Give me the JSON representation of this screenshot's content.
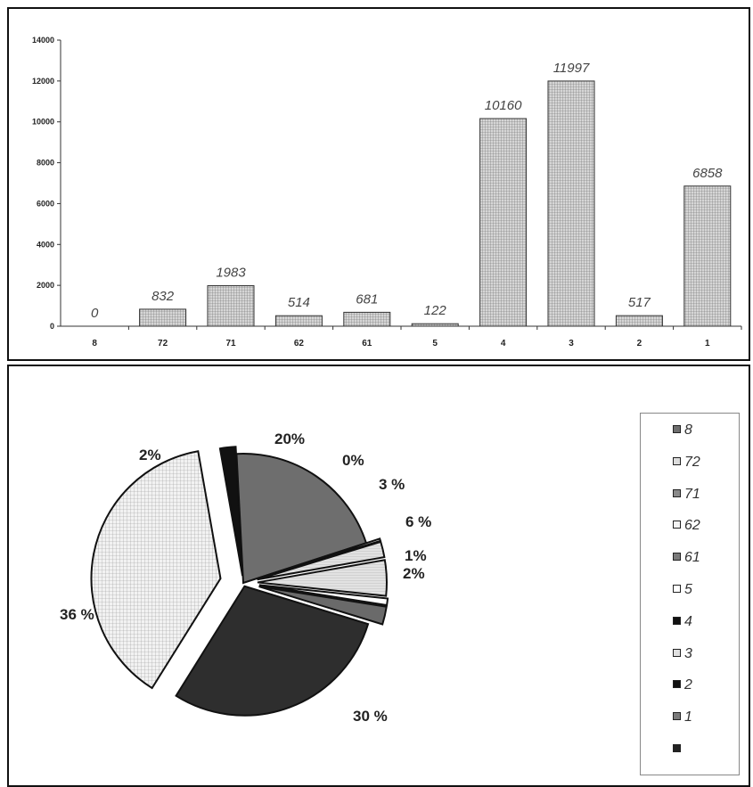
{
  "chart_data": [
    {
      "type": "bar",
      "categories": [
        "8",
        "72",
        "71",
        "62",
        "61",
        "5",
        "4",
        "3",
        "2",
        "1"
      ],
      "values": [
        0,
        832,
        1983,
        514,
        681,
        122,
        10160,
        11997,
        517,
        6858
      ],
      "data_labels": [
        "0",
        "832",
        "1983",
        "514",
        "681",
        "122",
        "10160",
        "11997",
        "517",
        "6858"
      ],
      "y_ticks": [
        "0",
        "2000",
        "4000",
        "6000",
        "8000",
        "10000",
        "12000",
        "14000"
      ],
      "ylim": [
        0,
        14000
      ],
      "bar_color": "#c8c8c8",
      "grid": false,
      "title": "",
      "xlabel": "",
      "ylabel": ""
    },
    {
      "type": "pie",
      "slices": [
        {
          "label": "2%",
          "value": 2,
          "color": "#111111"
        },
        {
          "label": "20%",
          "value": 20,
          "color": "#7a7a7a"
        },
        {
          "label": "0%",
          "value": 0.4,
          "color": "#ffffff"
        },
        {
          "label": "3 %",
          "value": 3,
          "color": "#d0d0d0"
        },
        {
          "label": "6 %",
          "value": 6,
          "color": "#c8c8c8"
        },
        {
          "label": "1%",
          "value": 1,
          "color": "#ffffff"
        },
        {
          "label": "2%",
          "value": 2,
          "color": "#6a6a6a"
        },
        {
          "label": "30 %",
          "value": 30,
          "color": "#2b2b2b"
        },
        {
          "label": "36 %",
          "value": 36,
          "color": "#e8e8e8"
        }
      ],
      "legend": {
        "placement": "right",
        "items": [
          {
            "label": "8",
            "color": "#6e6e6e"
          },
          {
            "label": "72",
            "color": "#dcdcdc"
          },
          {
            "label": "71",
            "color": "#8a8a8a"
          },
          {
            "label": "62",
            "color": "#f4f4f4"
          },
          {
            "label": "61",
            "color": "#7a7a7a"
          },
          {
            "label": "5",
            "color": "#ffffff"
          },
          {
            "label": "4",
            "color": "#111111"
          },
          {
            "label": "3",
            "color": "#e0e0e0"
          },
          {
            "label": "2",
            "color": "#111111"
          },
          {
            "label": "1",
            "color": "#7a7a7a"
          },
          {
            "label": "",
            "color": "#222222"
          }
        ]
      }
    }
  ]
}
